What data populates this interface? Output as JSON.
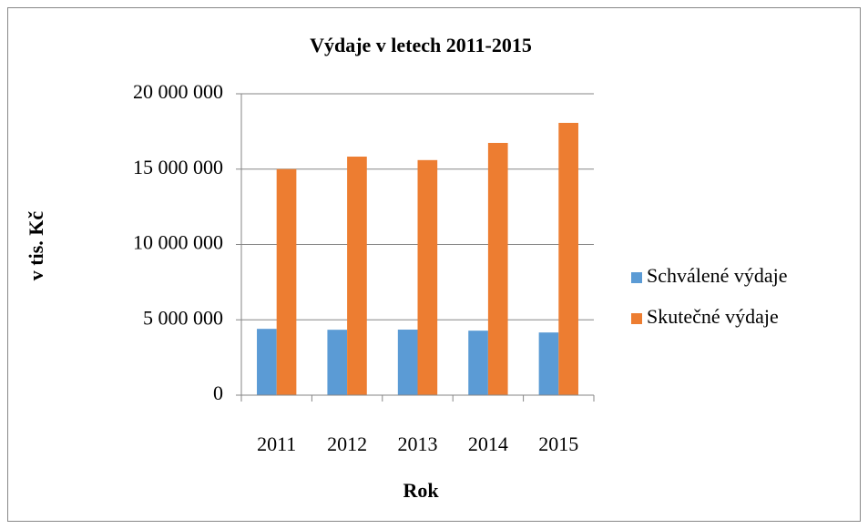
{
  "chart_data": {
    "type": "bar",
    "title": "Výdaje v letech 2011-2015",
    "x_label": "Rok",
    "y_label": "v tis. Kč",
    "categories": [
      "2011",
      "2012",
      "2013",
      "2014",
      "2015"
    ],
    "series": [
      {
        "name": "Schválené výdaje",
        "color": "#5b9bd5",
        "values": [
          4400000,
          4340000,
          4350000,
          4280000,
          4160000
        ]
      },
      {
        "name": "Skutečné výdaje",
        "color": "#ed7d31",
        "values": [
          15000000,
          15830000,
          15600000,
          16740000,
          18070000
        ]
      }
    ],
    "ylim": [
      0,
      20000000
    ],
    "yticks": [
      0,
      {
        "value": 5000000,
        "label": "5 000 000"
      },
      {
        "value": 10000000,
        "label": "10 000 000"
      },
      {
        "value": 15000000,
        "label": "15 000 000"
      },
      {
        "value": 20000000,
        "label": "20 000 000"
      }
    ],
    "grid": true,
    "legend": "right"
  }
}
